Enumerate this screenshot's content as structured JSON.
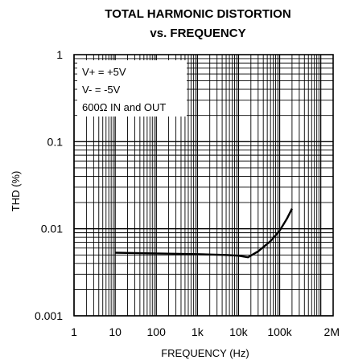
{
  "chart_data": {
    "type": "line",
    "title_line1": "TOTAL HARMONIC DISTORTION",
    "title_line2": "vs. FREQUENCY",
    "xlabel": "FREQUENCY (Hz)",
    "ylabel": "THD (%)",
    "x_scale": "log",
    "y_scale": "log",
    "xlim": [
      1,
      2000000
    ],
    "ylim": [
      0.001,
      1
    ],
    "x_ticks": [
      {
        "value": 1,
        "label": "1"
      },
      {
        "value": 10,
        "label": "10"
      },
      {
        "value": 100,
        "label": "100"
      },
      {
        "value": 1000,
        "label": "1k"
      },
      {
        "value": 10000,
        "label": "10k"
      },
      {
        "value": 100000,
        "label": "100k"
      },
      {
        "value": 2000000,
        "label": "2M"
      }
    ],
    "y_ticks": [
      {
        "value": 1,
        "label": "1"
      },
      {
        "value": 0.1,
        "label": "0.1"
      },
      {
        "value": 0.01,
        "label": "0.01"
      },
      {
        "value": 0.001,
        "label": "0.001"
      }
    ],
    "grid": true,
    "annotations": [
      "V+ = +5V",
      "V- = -5V",
      "600Ω IN and OUT"
    ],
    "series": [
      {
        "x": [
          10,
          100,
          1000,
          5000,
          10000,
          13000,
          17000,
          30000,
          60000,
          100000,
          150000,
          200000
        ],
        "y": [
          0.0053,
          0.0052,
          0.0051,
          0.005,
          0.0049,
          0.0048,
          0.0047,
          0.0055,
          0.0072,
          0.0095,
          0.013,
          0.017
        ]
      }
    ]
  }
}
